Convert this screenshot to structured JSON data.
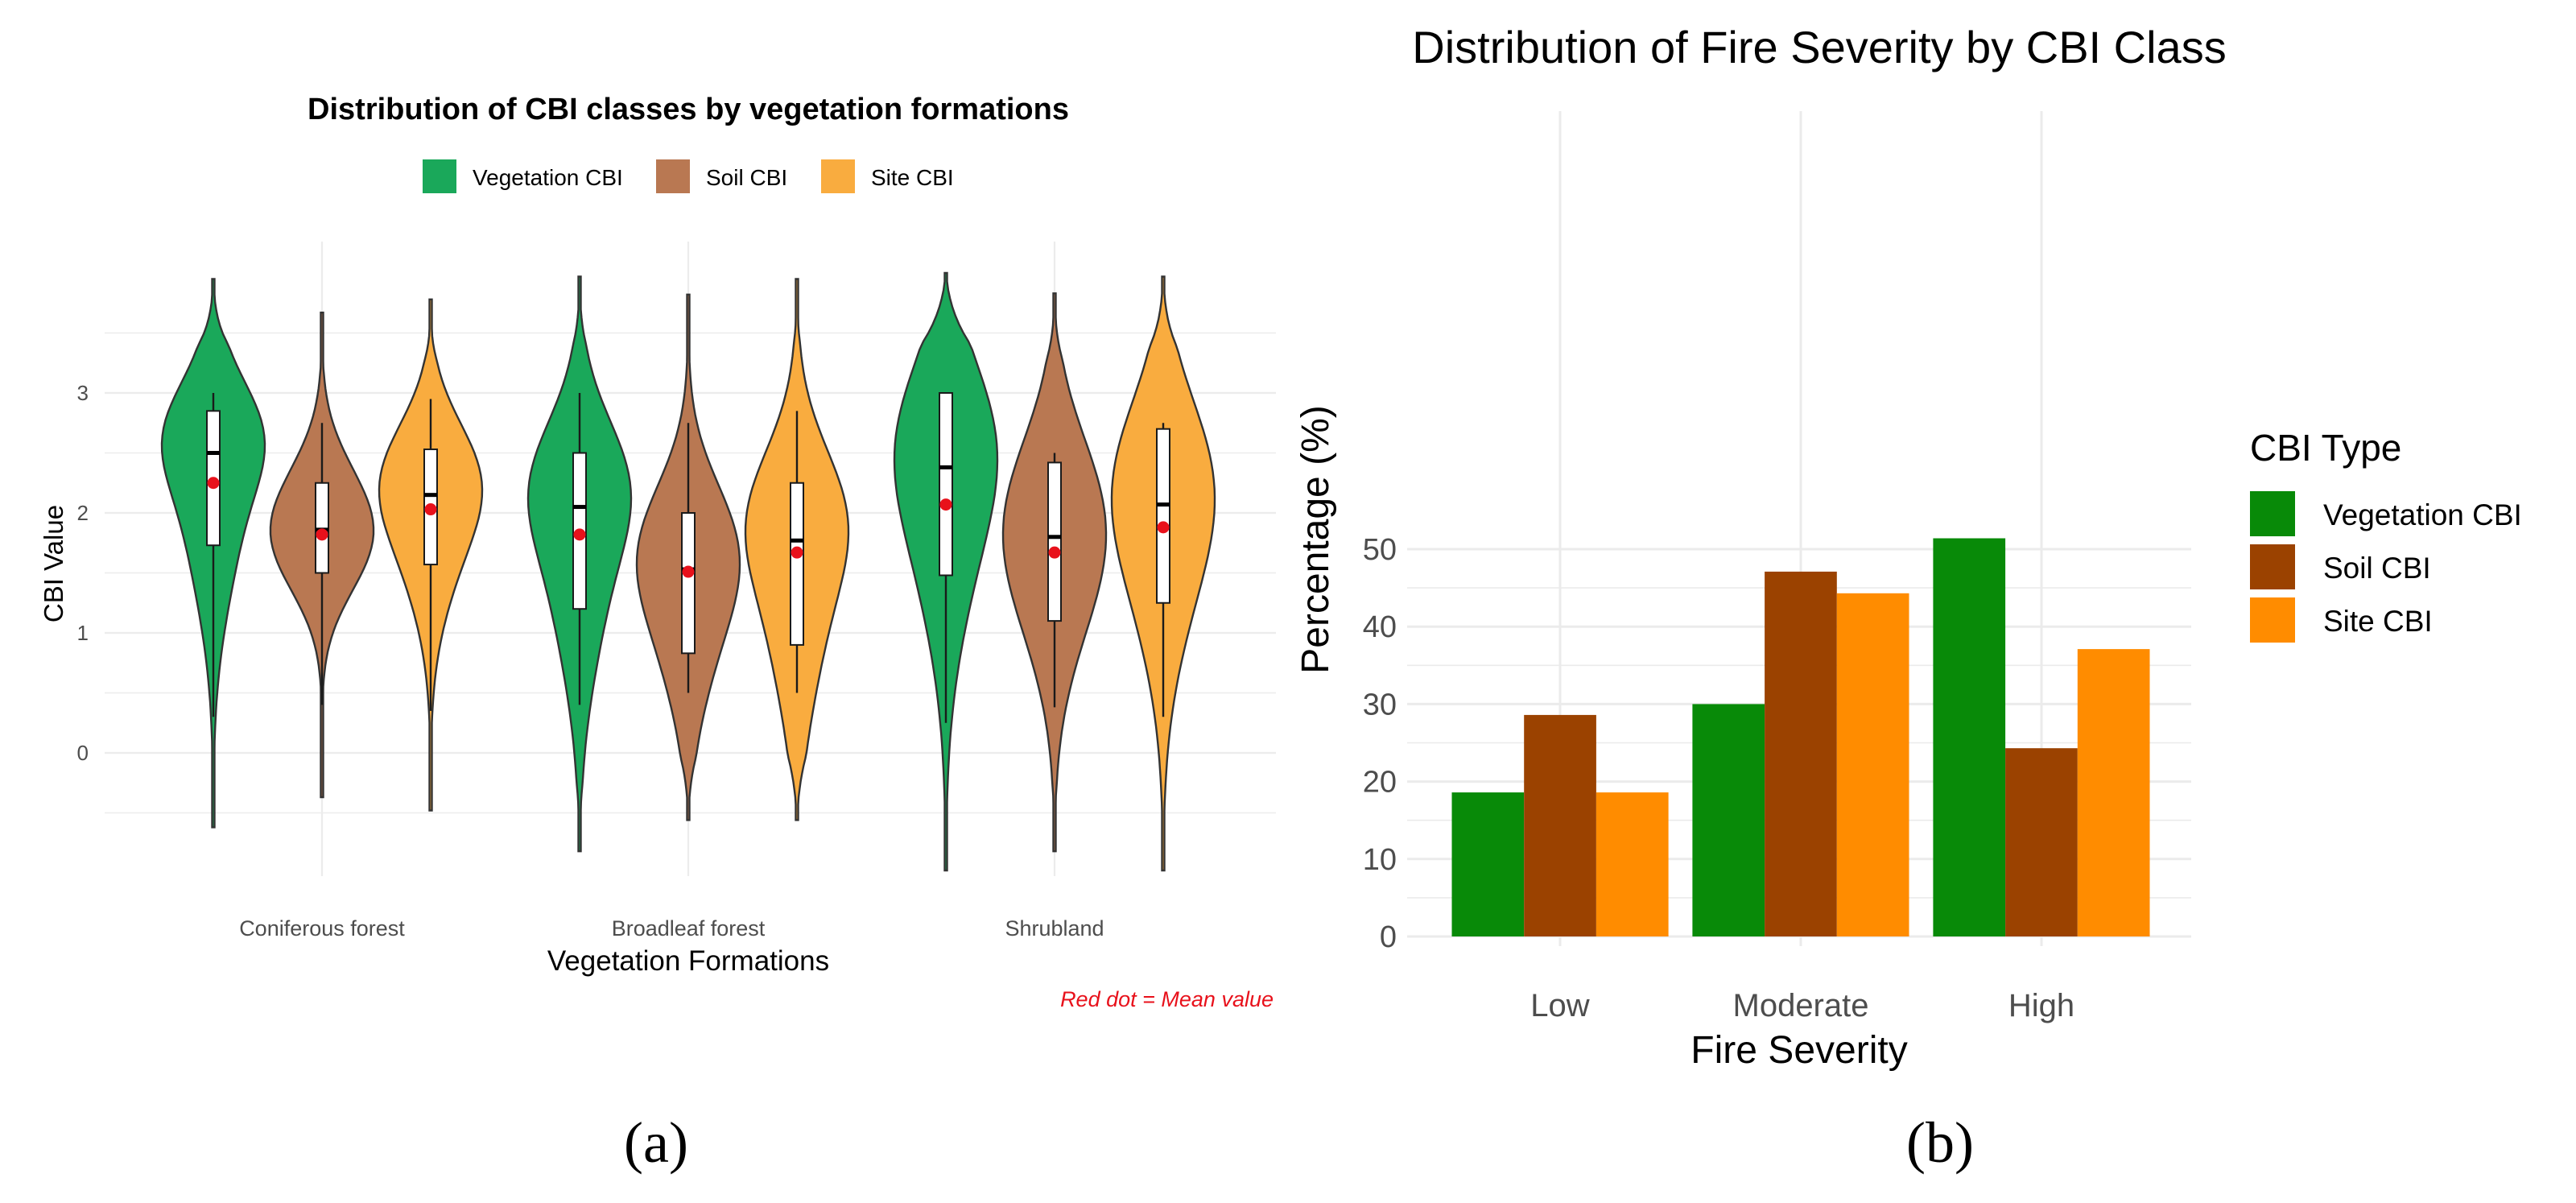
{
  "chart_data": [
    {
      "panel": "(a)",
      "type": "violin",
      "title": "Distribution of CBI classes by vegetation formations",
      "xlabel": "Vegetation Formations",
      "ylabel": "CBI Value",
      "ylim": [
        -1.0,
        4.0
      ],
      "yticks": [
        "3",
        "2",
        "1",
        "0"
      ],
      "categories": [
        "Coniferous forest",
        "Broadleaf forest",
        "Shrubland"
      ],
      "legend": [
        "Vegetation CBI",
        "Soil CBI",
        "Site CBI"
      ],
      "legend_position": "top",
      "note": "Red dot = Mean value",
      "colors": {
        "Vegetation CBI": "#1aa85a",
        "Soil CBI": "#b97852",
        "Site CBI": "#f9ac3f",
        "mean": "#e8111b"
      },
      "series": [
        {
          "name": "Vegetation CBI",
          "groups": [
            {
              "min": 0.3,
              "q1": 1.73,
              "median": 2.5,
              "q3": 2.85,
              "max": 3.0,
              "mean": 2.25,
              "tail_low": -0.62,
              "tail_high": 3.95
            },
            {
              "min": 0.4,
              "q1": 1.2,
              "median": 2.05,
              "q3": 2.5,
              "max": 3.0,
              "mean": 1.82,
              "tail_low": -0.82,
              "tail_high": 3.97
            },
            {
              "min": 0.25,
              "q1": 1.48,
              "median": 2.38,
              "q3": 3.0,
              "max": 3.0,
              "mean": 2.07,
              "tail_low": -0.98,
              "tail_high": 4.0
            }
          ]
        },
        {
          "name": "Soil CBI",
          "groups": [
            {
              "min": 0.4,
              "q1": 1.5,
              "median": 1.86,
              "q3": 2.25,
              "max": 2.75,
              "mean": 1.82,
              "tail_low": -0.37,
              "tail_high": 3.67
            },
            {
              "min": 0.5,
              "q1": 0.83,
              "median": 1.53,
              "q3": 2.0,
              "max": 2.75,
              "mean": 1.51,
              "tail_low": -0.56,
              "tail_high": 3.82
            },
            {
              "min": 0.38,
              "q1": 1.1,
              "median": 1.8,
              "q3": 2.42,
              "max": 2.5,
              "mean": 1.67,
              "tail_low": -0.82,
              "tail_high": 3.83
            }
          ]
        },
        {
          "name": "Site CBI",
          "groups": [
            {
              "min": 0.35,
              "q1": 1.57,
              "median": 2.15,
              "q3": 2.53,
              "max": 2.95,
              "mean": 2.03,
              "tail_low": -0.48,
              "tail_high": 3.78
            },
            {
              "min": 0.5,
              "q1": 0.9,
              "median": 1.77,
              "q3": 2.25,
              "max": 2.85,
              "mean": 1.67,
              "tail_low": -0.56,
              "tail_high": 3.95
            },
            {
              "min": 0.3,
              "q1": 1.25,
              "median": 2.07,
              "q3": 2.7,
              "max": 2.75,
              "mean": 1.88,
              "tail_low": -0.98,
              "tail_high": 3.97
            }
          ]
        }
      ]
    },
    {
      "panel": "(b)",
      "type": "bar",
      "title": "Distribution of Fire Severity by CBI Class",
      "xlabel": "Fire Severity",
      "ylabel": "Percentage (%)",
      "ylim": [
        0,
        54
      ],
      "yticks": [
        "0",
        "10",
        "20",
        "30",
        "40",
        "50"
      ],
      "categories": [
        "Low",
        "Moderate",
        "High"
      ],
      "legend_title": "CBI Type",
      "legend_position": "right",
      "colors": {
        "Vegetation CBI": "#088a08",
        "Soil CBI": "#9b4200",
        "Site CBI": "#ff8c00"
      },
      "series": [
        {
          "name": "Vegetation CBI",
          "values": [
            18.6,
            30.0,
            51.4
          ]
        },
        {
          "name": "Soil CBI",
          "values": [
            28.6,
            47.1,
            24.3
          ]
        },
        {
          "name": "Site CBI",
          "values": [
            18.6,
            44.3,
            37.1
          ]
        }
      ]
    }
  ],
  "captions": {
    "a": "(a)",
    "b": "(b)"
  }
}
